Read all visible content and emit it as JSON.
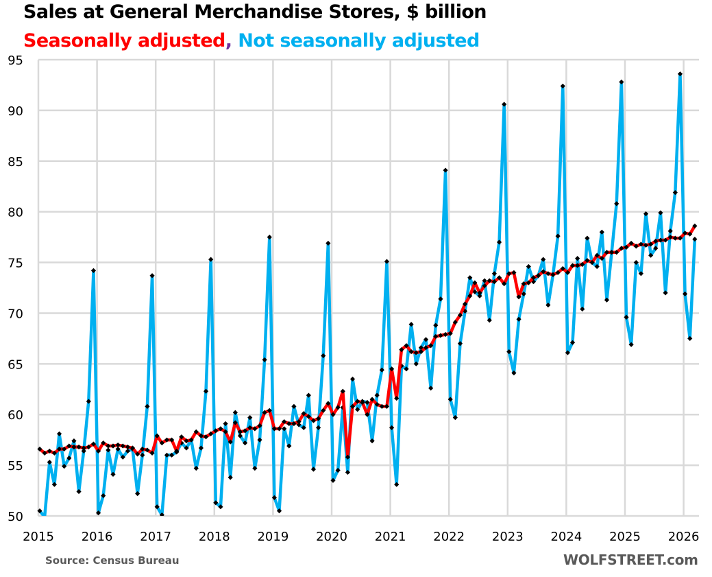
{
  "chart_data": {
    "type": "line",
    "title": "Sales at General Merchandise Stores, $ billion",
    "subtitle": {
      "part1": "Seasonally adjusted",
      "separator": ",",
      "part2": " Not seasonally adjusted"
    },
    "xlabel": "",
    "ylabel": "",
    "ylim": [
      50,
      95
    ],
    "yticks": [
      "50",
      "55",
      "60",
      "65",
      "70",
      "75",
      "80",
      "85",
      "90",
      "95"
    ],
    "ytick_values": [
      50,
      55,
      60,
      65,
      70,
      75,
      80,
      85,
      90,
      95
    ],
    "xticks": [
      "2015",
      "2016",
      "2017",
      "2018",
      "2019",
      "2020",
      "2021",
      "2022",
      "2023",
      "2024",
      "2025",
      "2026"
    ],
    "x_start": "2015-01",
    "x_end": "2026-03",
    "frequency": "monthly",
    "grid": true,
    "legend": "subtitle",
    "colors": {
      "seasonally_adjusted": "#FF0000",
      "not_seasonally_adjusted": "#00B0F0",
      "markers": "#000000",
      "grid": "#D9D9D9",
      "separator": "#7030A0"
    },
    "series": [
      {
        "name": "Not seasonally adjusted",
        "values": [
          50.5,
          49.9,
          55.3,
          53.1,
          58.1,
          54.9,
          55.7,
          57.4,
          52.4,
          56.4,
          61.3,
          74.2,
          50.3,
          52.0,
          56.5,
          54.1,
          56.6,
          55.8,
          56.4,
          56.6,
          52.2,
          56.0,
          60.8,
          73.7,
          50.9,
          50.1,
          56.0,
          56.0,
          56.3,
          57.2,
          56.7,
          57.5,
          54.7,
          56.7,
          62.3,
          75.3,
          51.3,
          50.9,
          59.1,
          53.8,
          60.2,
          57.9,
          57.2,
          59.7,
          54.7,
          57.5,
          65.4,
          77.5,
          51.8,
          50.5,
          58.6,
          56.9,
          60.8,
          59.0,
          58.7,
          61.9,
          54.6,
          58.7,
          65.8,
          76.9,
          53.5,
          54.5,
          60.7,
          54.3,
          63.5,
          60.5,
          61.3,
          61.2,
          57.4,
          61.9,
          64.4,
          75.1,
          58.7,
          53.1,
          64.8,
          64.5,
          68.9,
          65.0,
          66.6,
          67.4,
          62.6,
          68.8,
          71.4,
          84.1,
          61.5,
          59.7,
          67.0,
          70.2,
          73.5,
          72.1,
          71.7,
          73.2,
          69.3,
          73.9,
          77.0,
          90.6,
          66.2,
          64.1,
          69.4,
          71.9,
          74.6,
          73.1,
          73.7,
          75.3,
          70.8,
          73.8,
          77.6,
          92.4,
          66.1,
          67.1,
          75.4,
          70.4,
          77.4,
          75.0,
          74.6,
          78.0,
          71.3,
          76.0,
          80.8,
          92.8,
          69.6,
          66.9,
          75.0,
          73.9,
          79.8,
          75.7,
          76.4,
          79.9,
          72.0,
          78.1,
          81.9,
          93.6,
          71.9,
          67.5,
          77.3
        ]
      },
      {
        "name": "Seasonally adjusted",
        "values": [
          56.6,
          56.2,
          56.4,
          56.2,
          56.6,
          56.6,
          56.9,
          56.8,
          56.8,
          56.7,
          56.8,
          57.1,
          56.4,
          57.2,
          56.9,
          56.9,
          57.0,
          56.9,
          56.8,
          56.7,
          56.1,
          56.6,
          56.5,
          56.2,
          57.9,
          57.2,
          57.5,
          57.5,
          56.4,
          57.8,
          57.4,
          57.5,
          58.3,
          57.9,
          57.8,
          58.1,
          58.4,
          58.6,
          58.3,
          57.3,
          59.2,
          58.3,
          58.4,
          58.7,
          58.6,
          58.9,
          60.2,
          60.4,
          58.6,
          58.6,
          59.3,
          59.1,
          59.1,
          59.3,
          60.1,
          59.8,
          59.4,
          59.6,
          60.4,
          61.1,
          60.0,
          60.7,
          62.3,
          55.8,
          60.8,
          61.3,
          61.2,
          60.0,
          61.5,
          61.0,
          60.8,
          60.8,
          64.5,
          61.6,
          66.4,
          66.8,
          66.2,
          66.1,
          66.2,
          66.6,
          66.8,
          67.7,
          67.8,
          67.9,
          68.0,
          69.1,
          69.8,
          70.9,
          71.7,
          73.0,
          72.0,
          72.7,
          73.2,
          73.1,
          73.5,
          72.9,
          73.9,
          74.0,
          71.6,
          72.9,
          73.0,
          73.5,
          73.7,
          74.1,
          73.9,
          73.8,
          74.0,
          74.4,
          74.0,
          74.7,
          74.7,
          74.8,
          75.2,
          75.0,
          75.7,
          75.4,
          76.0,
          76.0,
          76.0,
          76.4,
          76.5,
          76.9,
          76.6,
          76.8,
          76.7,
          76.8,
          77.1,
          77.2,
          77.2,
          77.5,
          77.4,
          77.4,
          77.9,
          77.8,
          78.6
        ]
      }
    ],
    "annotations": {
      "source": "Source: Census Bureau",
      "watermark": "WOLFSTREET.com"
    }
  }
}
